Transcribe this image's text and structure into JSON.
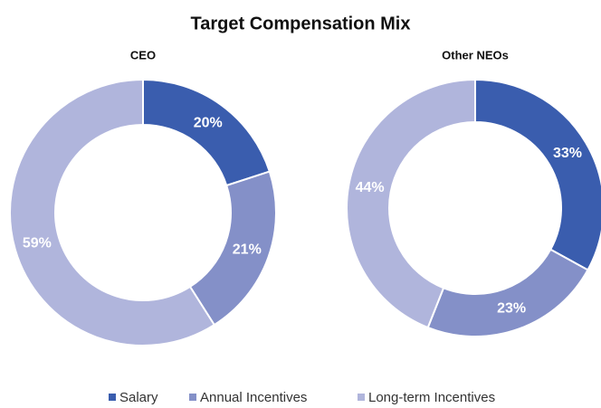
{
  "title": "Target Compensation Mix",
  "categories": [
    "Salary",
    "Annual Incentives",
    "Long-term Incentives"
  ],
  "colors": [
    "#3a5dae",
    "#8490c8",
    "#b0b5dc"
  ],
  "chart_data": [
    {
      "type": "pie",
      "title": "CEO",
      "values": [
        20,
        21,
        59
      ],
      "value_labels": [
        "20%",
        "21%",
        "59%"
      ]
    },
    {
      "type": "pie",
      "title": "Other NEOs",
      "values": [
        33,
        23,
        44
      ],
      "value_labels": [
        "33%",
        "23%",
        "44%"
      ]
    }
  ]
}
